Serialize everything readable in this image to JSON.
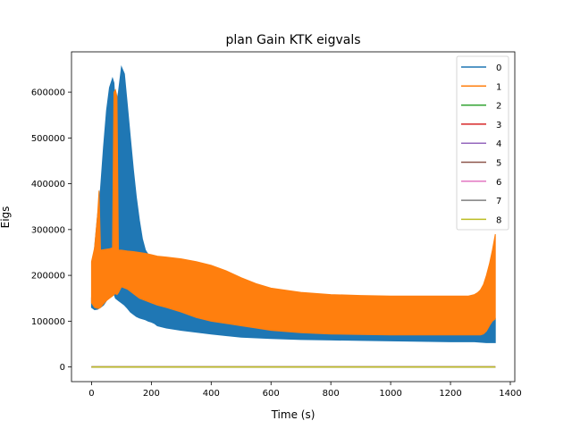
{
  "chart_data": {
    "type": "line",
    "title": "plan Gain KTK eigvals",
    "xlabel": "Time (s)",
    "ylabel": "Eigs",
    "xlim": [
      -67,
      1415
    ],
    "ylim": [
      -32000,
      688000
    ],
    "xticks": [
      0,
      200,
      400,
      600,
      800,
      1000,
      1200,
      1400
    ],
    "yticks": [
      0,
      100000,
      200000,
      300000,
      400000,
      500000,
      600000
    ],
    "grid": false,
    "legend_position": "upper right",
    "series": [
      {
        "name": "0",
        "color": "#1f77b4",
        "render": "band",
        "x": [
          0,
          10,
          20,
          30,
          40,
          50,
          60,
          70,
          75,
          80,
          90,
          100,
          110,
          120,
          130,
          140,
          150,
          160,
          170,
          180,
          190,
          200,
          210,
          220,
          250,
          300,
          400,
          500,
          600,
          700,
          800,
          900,
          1000,
          1100,
          1200,
          1250,
          1280,
          1300,
          1320,
          1340,
          1350
        ],
        "upper": [
          150000,
          260000,
          330000,
          390000,
          480000,
          560000,
          610000,
          630000,
          620000,
          560000,
          600000,
          655000,
          640000,
          570000,
          500000,
          430000,
          370000,
          320000,
          280000,
          255000,
          245000,
          240000,
          238000,
          236000,
          235000,
          228000,
          200000,
          160000,
          135000,
          128000,
          124000,
          122000,
          120000,
          118000,
          112000,
          105000,
          103000,
          104000,
          105000,
          106000,
          106000
        ],
        "lower": [
          130000,
          125000,
          126000,
          130000,
          135000,
          145000,
          155000,
          162000,
          160000,
          150000,
          145000,
          140000,
          135000,
          128000,
          120000,
          115000,
          110000,
          107000,
          105000,
          103000,
          100000,
          98000,
          95000,
          90000,
          85000,
          80000,
          72000,
          65000,
          62000,
          60000,
          59000,
          58000,
          57000,
          56000,
          55000,
          55000,
          55000,
          54000,
          53000,
          53000,
          53000
        ]
      },
      {
        "name": "1",
        "color": "#ff7f0e",
        "render": "band",
        "x": [
          0,
          10,
          20,
          25,
          30,
          40,
          50,
          60,
          70,
          75,
          80,
          85,
          90,
          100,
          120,
          140,
          160,
          180,
          200,
          220,
          250,
          300,
          350,
          400,
          450,
          500,
          550,
          600,
          700,
          800,
          900,
          1000,
          1100,
          1200,
          1260,
          1280,
          1290,
          1300,
          1310,
          1320,
          1330,
          1340,
          1350
        ],
        "upper": [
          230000,
          260000,
          330000,
          385000,
          255000,
          256000,
          257000,
          258000,
          260000,
          600000,
          605000,
          590000,
          255000,
          255000,
          253000,
          252000,
          250000,
          248000,
          245000,
          242000,
          240000,
          236000,
          230000,
          222000,
          210000,
          195000,
          182000,
          172000,
          163000,
          158000,
          156000,
          155000,
          155000,
          155000,
          155000,
          158000,
          162000,
          168000,
          180000,
          200000,
          225000,
          255000,
          290000
        ],
        "lower": [
          140000,
          130000,
          128000,
          128000,
          130000,
          138000,
          145000,
          150000,
          155000,
          158000,
          160000,
          158000,
          162000,
          175000,
          170000,
          160000,
          150000,
          145000,
          140000,
          135000,
          130000,
          120000,
          108000,
          100000,
          95000,
          90000,
          85000,
          80000,
          75000,
          72000,
          71000,
          70000,
          70000,
          70000,
          70000,
          70000,
          70000,
          70000,
          72000,
          78000,
          90000,
          100000,
          105000
        ]
      },
      {
        "name": "2",
        "color": "#2ca02c",
        "x": [
          0,
          1350
        ],
        "y": [
          0,
          0
        ]
      },
      {
        "name": "3",
        "color": "#d62728",
        "x": [
          0,
          1350
        ],
        "y": [
          0,
          0
        ]
      },
      {
        "name": "4",
        "color": "#9467bd",
        "x": [
          0,
          1350
        ],
        "y": [
          0,
          0
        ]
      },
      {
        "name": "5",
        "color": "#8c564b",
        "x": [
          0,
          1350
        ],
        "y": [
          0,
          0
        ]
      },
      {
        "name": "6",
        "color": "#e377c2",
        "x": [
          0,
          1350
        ],
        "y": [
          0,
          0
        ]
      },
      {
        "name": "7",
        "color": "#7f7f7f",
        "x": [
          0,
          1350
        ],
        "y": [
          0,
          0
        ]
      },
      {
        "name": "8",
        "color": "#bcbd22",
        "x": [
          0,
          1350
        ],
        "y": [
          0,
          0
        ]
      }
    ]
  }
}
